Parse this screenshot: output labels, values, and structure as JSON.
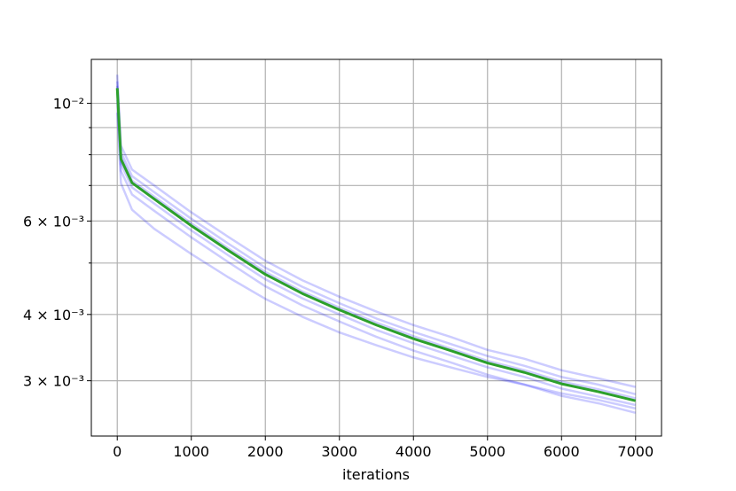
{
  "chart_data": {
    "type": "line",
    "x_label": "iterations",
    "y_log": true,
    "grid": true,
    "xlim": [
      -350,
      7350
    ],
    "ylim": [
      0.00236,
      0.0121
    ],
    "xticks": [
      0,
      1000,
      2000,
      3000,
      4000,
      5000,
      6000,
      7000
    ],
    "yticks": [
      {
        "value": 0.01,
        "label": "10⁻²"
      },
      {
        "value": 0.009,
        "label": null
      },
      {
        "value": 0.008,
        "label": null
      },
      {
        "value": 0.007,
        "label": null
      },
      {
        "value": 0.006,
        "label": "6 × 10⁻³"
      },
      {
        "value": 0.005,
        "label": null
      },
      {
        "value": 0.004,
        "label": "4 × 10⁻³"
      },
      {
        "value": 0.003,
        "label": "3 × 10⁻³"
      }
    ],
    "x": [
      0,
      50,
      200,
      500,
      1000,
      1500,
      2000,
      2500,
      3000,
      3500,
      4000,
      4500,
      5000,
      5500,
      6000,
      6500,
      7000
    ],
    "series": [
      {
        "color": "#0000ff",
        "opacity": 0.2,
        "values": [
          0.01132,
          0.00832,
          0.0075,
          0.007,
          0.00623,
          0.0056,
          0.00505,
          0.00464,
          0.00432,
          0.00405,
          0.00382,
          0.00363,
          0.00343,
          0.0033,
          0.00314,
          0.00303,
          0.00292
        ]
      },
      {
        "color": "#0000ff",
        "opacity": 0.2,
        "values": [
          0.011,
          0.00809,
          0.00729,
          0.0068,
          0.00606,
          0.00544,
          0.0049,
          0.00451,
          0.0042,
          0.00393,
          0.00371,
          0.00352,
          0.00334,
          0.0032,
          0.00305,
          0.00295,
          0.00283
        ]
      },
      {
        "color": "#0000ff",
        "opacity": 0.2,
        "values": [
          0.01079,
          0.00793,
          0.00715,
          0.00667,
          0.00594,
          0.00533,
          0.00481,
          0.00442,
          0.00412,
          0.00386,
          0.00364,
          0.00345,
          0.00327,
          0.00314,
          0.00299,
          0.00289,
          0.00278
        ]
      },
      {
        "color": "#0000ff",
        "opacity": 0.2,
        "values": [
          0.01047,
          0.00769,
          0.00694,
          0.00647,
          0.00576,
          0.00517,
          0.00466,
          0.00429,
          0.004,
          0.00374,
          0.00353,
          0.00335,
          0.00318,
          0.00305,
          0.0029,
          0.0028,
          0.0027
        ]
      },
      {
        "color": "#0000ff",
        "opacity": 0.2,
        "values": [
          0.01015,
          0.00746,
          0.00673,
          0.00627,
          0.00559,
          0.00502,
          0.00452,
          0.00416,
          0.00388,
          0.00363,
          0.00342,
          0.00325,
          0.00308,
          0.00295,
          0.00281,
          0.00272,
          0.00261
        ]
      },
      {
        "color": "#0000ff",
        "opacity": 0.2,
        "values": [
          0.0096,
          0.00707,
          0.0063,
          0.0058,
          0.0052,
          0.0047,
          0.00428,
          0.00396,
          0.0037,
          0.0035,
          0.00332,
          0.00318,
          0.00305,
          0.00295,
          0.00284,
          0.00276,
          0.00266
        ]
      },
      {
        "color": "#2ca02c",
        "opacity": 1,
        "width": 3,
        "values": [
          0.01068,
          0.00785,
          0.00708,
          0.0066,
          0.00588,
          0.00528,
          0.00476,
          0.00438,
          0.00408,
          0.00382,
          0.0036,
          0.00342,
          0.00324,
          0.00311,
          0.00296,
          0.00286,
          0.00275
        ]
      }
    ]
  }
}
